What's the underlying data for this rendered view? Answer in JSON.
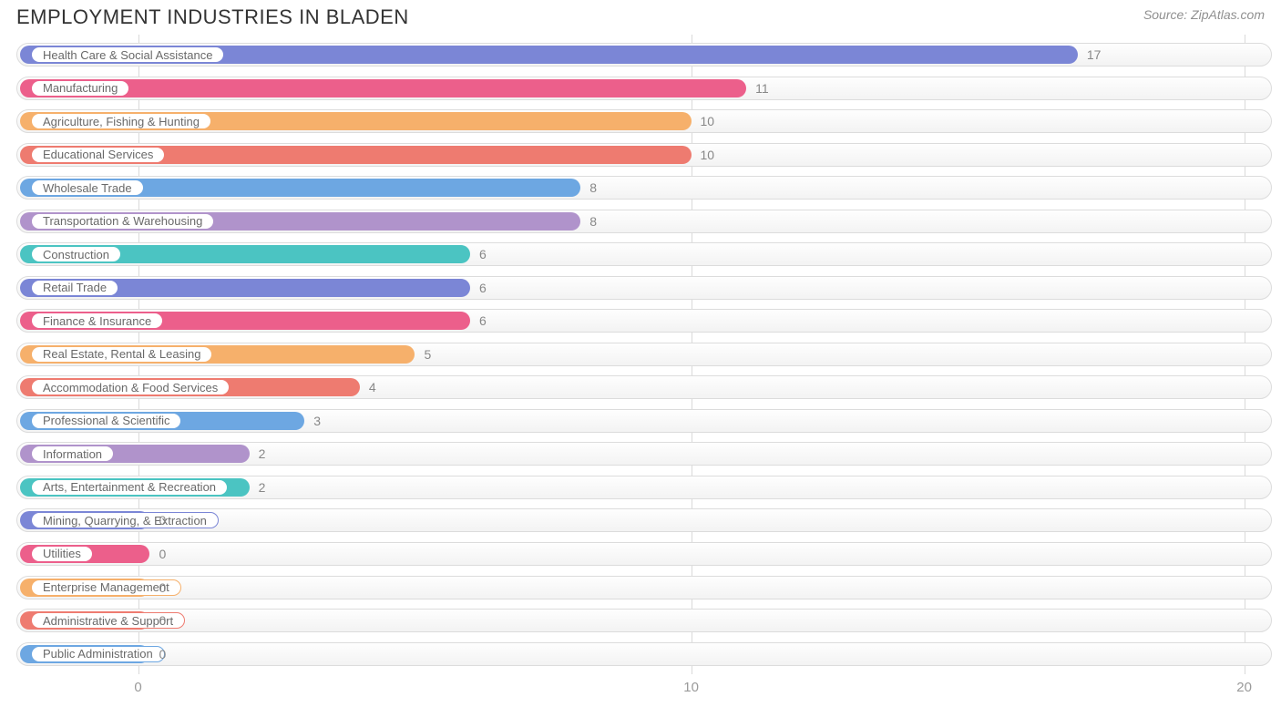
{
  "header": {
    "title": "EMPLOYMENT INDUSTRIES IN BLADEN",
    "source": "Source: ZipAtlas.com"
  },
  "chart": {
    "type": "bar-horizontal",
    "background_color": "#ffffff",
    "track_border_color": "#dcdcdc",
    "grid_color": "#d9d9d9",
    "label_text_color": "#696969",
    "value_text_color": "#888888",
    "axis_text_color": "#9a9a9a",
    "title_fontsize": 22,
    "label_fontsize": 13,
    "value_fontsize": 14,
    "axis_fontsize": 15,
    "value_min": -2.2,
    "value_max": 20.5,
    "bar_min_value": 0.2,
    "ticks": [
      0,
      10,
      20
    ],
    "items": [
      {
        "label": "Health Care & Social Assistance",
        "value": 17,
        "color": "#7b86d6"
      },
      {
        "label": "Manufacturing",
        "value": 11,
        "color": "#ec5f8b"
      },
      {
        "label": "Agriculture, Fishing & Hunting",
        "value": 10,
        "color": "#f6b06b"
      },
      {
        "label": "Educational Services",
        "value": 10,
        "color": "#ee7b70"
      },
      {
        "label": "Wholesale Trade",
        "value": 8,
        "color": "#6da7e2"
      },
      {
        "label": "Transportation & Warehousing",
        "value": 8,
        "color": "#b093cb"
      },
      {
        "label": "Construction",
        "value": 6,
        "color": "#4bc4c2"
      },
      {
        "label": "Retail Trade",
        "value": 6,
        "color": "#7b86d6"
      },
      {
        "label": "Finance & Insurance",
        "value": 6,
        "color": "#ec5f8b"
      },
      {
        "label": "Real Estate, Rental & Leasing",
        "value": 5,
        "color": "#f6b06b"
      },
      {
        "label": "Accommodation & Food Services",
        "value": 4,
        "color": "#ee7b70"
      },
      {
        "label": "Professional & Scientific",
        "value": 3,
        "color": "#6da7e2"
      },
      {
        "label": "Information",
        "value": 2,
        "color": "#b093cb"
      },
      {
        "label": "Arts, Entertainment & Recreation",
        "value": 2,
        "color": "#4bc4c2"
      },
      {
        "label": "Mining, Quarrying, & Extraction",
        "value": 0,
        "color": "#7b86d6"
      },
      {
        "label": "Utilities",
        "value": 0,
        "color": "#ec5f8b"
      },
      {
        "label": "Enterprise Management",
        "value": 0,
        "color": "#f6b06b"
      },
      {
        "label": "Administrative & Support",
        "value": 0,
        "color": "#ee7b70"
      },
      {
        "label": "Public Administration",
        "value": 0,
        "color": "#6da7e2"
      }
    ]
  }
}
